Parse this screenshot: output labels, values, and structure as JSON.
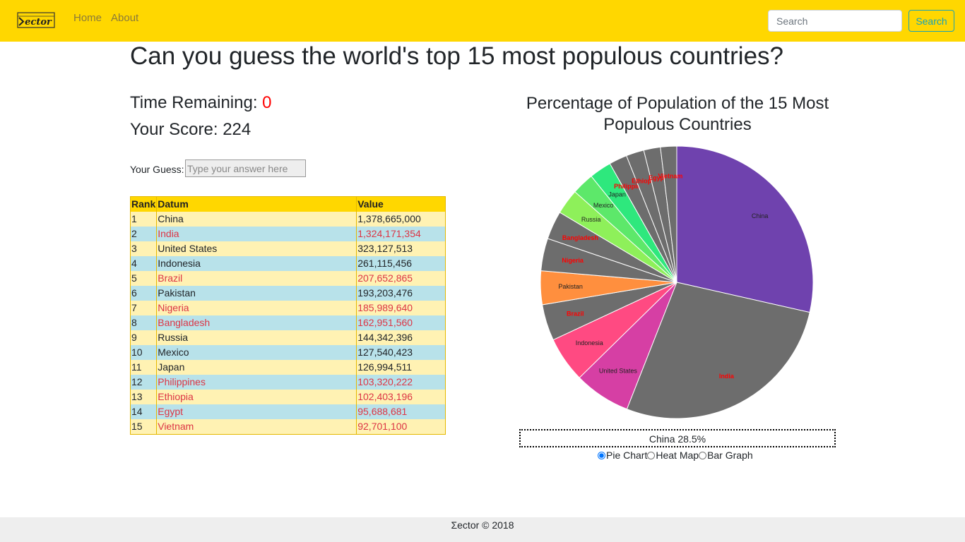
{
  "nav": {
    "logo_text": "ector",
    "home": "Home",
    "about": "About",
    "search_placeholder": "Search",
    "search_button": "Search"
  },
  "title": "Can you guess the world's top 15 most populous countries?",
  "stats": {
    "time_label": "Time Remaining: ",
    "time_value": "0",
    "score_label": "Your Score: ",
    "score_value": "224"
  },
  "guess": {
    "label": "Your Guess:",
    "placeholder": "Type your answer here"
  },
  "table": {
    "headers": [
      "Rank",
      "Datum",
      "Value"
    ],
    "rows": [
      {
        "rank": "1",
        "datum": "China",
        "value": "1,378,665,000",
        "missed": false
      },
      {
        "rank": "2",
        "datum": "India",
        "value": "1,324,171,354",
        "missed": true
      },
      {
        "rank": "3",
        "datum": "United States",
        "value": "323,127,513",
        "missed": false
      },
      {
        "rank": "4",
        "datum": "Indonesia",
        "value": "261,115,456",
        "missed": false
      },
      {
        "rank": "5",
        "datum": "Brazil",
        "value": "207,652,865",
        "missed": true
      },
      {
        "rank": "6",
        "datum": "Pakistan",
        "value": "193,203,476",
        "missed": false
      },
      {
        "rank": "7",
        "datum": "Nigeria",
        "value": "185,989,640",
        "missed": true
      },
      {
        "rank": "8",
        "datum": "Bangladesh",
        "value": "162,951,560",
        "missed": true
      },
      {
        "rank": "9",
        "datum": "Russia",
        "value": "144,342,396",
        "missed": false
      },
      {
        "rank": "10",
        "datum": "Mexico",
        "value": "127,540,423",
        "missed": false
      },
      {
        "rank": "11",
        "datum": "Japan",
        "value": "126,994,511",
        "missed": false
      },
      {
        "rank": "12",
        "datum": "Philippines",
        "value": "103,320,222",
        "missed": true
      },
      {
        "rank": "13",
        "datum": "Ethiopia",
        "value": "102,403,196",
        "missed": true
      },
      {
        "rank": "14",
        "datum": "Egypt",
        "value": "95,688,681",
        "missed": true
      },
      {
        "rank": "15",
        "datum": "Vietnam",
        "value": "92,701,100",
        "missed": true
      }
    ]
  },
  "chart_data": {
    "type": "pie",
    "title": "Percentage of Population of the 15 Most Populous Countries",
    "slices": [
      {
        "label": "China",
        "value": 1378665000,
        "color": "#6f42ae",
        "missed": false
      },
      {
        "label": "India",
        "value": 1324171354,
        "color": "#6d6d6d",
        "missed": true
      },
      {
        "label": "United States",
        "value": 323127513,
        "color": "#d63fa4",
        "missed": false
      },
      {
        "label": "Indonesia",
        "value": 261115456,
        "color": "#ff4a82",
        "missed": false
      },
      {
        "label": "Brazil",
        "value": 207652865,
        "color": "#6d6d6d",
        "missed": true
      },
      {
        "label": "Pakistan",
        "value": 193203476,
        "color": "#ff8f3e",
        "missed": false
      },
      {
        "label": "Nigeria",
        "value": 185989640,
        "color": "#6d6d6d",
        "missed": true
      },
      {
        "label": "Bangladesh",
        "value": 162951560,
        "color": "#6d6d6d",
        "missed": true
      },
      {
        "label": "Russia",
        "value": 144342396,
        "color": "#8ef05a",
        "missed": false
      },
      {
        "label": "Mexico",
        "value": 127540423,
        "color": "#5de86a",
        "missed": false
      },
      {
        "label": "Japan",
        "value": 126994511,
        "color": "#2ee87d",
        "missed": false
      },
      {
        "label": "Philippines",
        "value": 103320222,
        "color": "#6d6d6d",
        "missed": true
      },
      {
        "label": "Ethiopia",
        "value": 102403196,
        "color": "#6d6d6d",
        "missed": true
      },
      {
        "label": "Egypt",
        "value": 95688681,
        "color": "#6d6d6d",
        "missed": true
      },
      {
        "label": "Vietnam",
        "value": 92701100,
        "color": "#6d6d6d",
        "missed": true
      }
    ]
  },
  "tooltip": "China 28.5%",
  "view_options": {
    "pie": "Pie Chart",
    "heat": "Heat Map",
    "bar": "Bar Graph",
    "selected": "pie"
  },
  "footer": "Σector © 2018",
  "colors": {
    "navbar": "#ffd700",
    "missed_text": "#dc3545",
    "missed_label": "#ff0000",
    "accent": "#17a2b8"
  }
}
